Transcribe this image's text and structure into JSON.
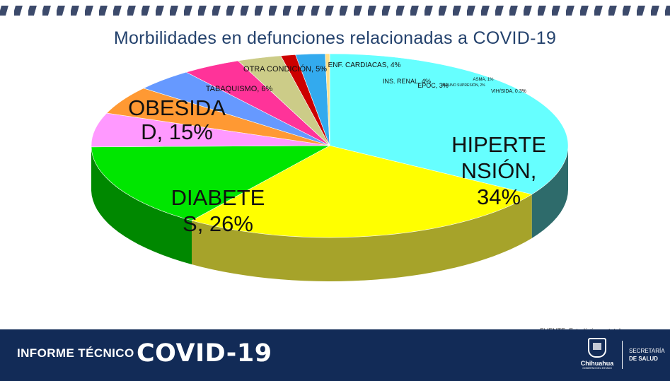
{
  "chart_data": {
    "type": "pie",
    "title": "Morbilidades en defunciones relacionadas a COVID-19",
    "slices": [
      {
        "label": "HIPERTENSIÓN",
        "value": 34,
        "display": [
          "HIPERTE",
          "NSIÓN,",
          "34%"
        ],
        "color": "#66ffff",
        "side": "#2e6b6b"
      },
      {
        "label": "DIABETES",
        "value": 26,
        "display": [
          "DIABETE",
          "S, 26%"
        ],
        "color": "#ffff00",
        "side": "#a6a32a"
      },
      {
        "label": "OBESIDAD",
        "value": 15,
        "display": [
          "OBESIDA",
          "D, 15%"
        ],
        "color": "#00e600",
        "side": "#008800"
      },
      {
        "label": "TABAQUISMO",
        "value": 6,
        "display": [
          "TABAQUISMO, 6%"
        ],
        "color": "#ff99ff",
        "side": "#a05aa0"
      },
      {
        "label": "OTRA CONDICIÓN",
        "value": 5,
        "display": [
          "OTRA CONDICIÓN, 5%"
        ],
        "color": "#ff9933",
        "side": "#a0561a"
      },
      {
        "label": "ENF. CARDIACAS",
        "value": 4,
        "display": [
          "ENF. CARDIACAS, 4%"
        ],
        "color": "#6699ff",
        "side": "#3a5aa0"
      },
      {
        "label": "INS. RENAL",
        "value": 4,
        "display": [
          "INS. RENAL, 4%"
        ],
        "color": "#ff3399",
        "side": "#a01a5a"
      },
      {
        "label": "EPOC",
        "value": 3,
        "display": [
          "EPOC, 3%"
        ],
        "color": "#cccc88",
        "side": "#8a8a55"
      },
      {
        "label": "ASMA",
        "value": 1,
        "display": [
          "ASMA, 1%"
        ],
        "color": "#cc0000",
        "side": "#7a0000"
      },
      {
        "label": "INMUNOSUPRESIÓN",
        "value": 2,
        "display": [
          "INMUNO SUPRESIÓN, 2%"
        ],
        "color": "#33aaee",
        "side": "#1a6a99"
      },
      {
        "label": "VIH/SIDA",
        "value": 0.3,
        "display": [
          "VIH/SIDA, 0.3%"
        ],
        "color": "#ffe08a",
        "side": "#a08a4a"
      }
    ],
    "legend": "none"
  },
  "source_note": "FUENTE: Estadística estatal",
  "footer": {
    "label": "INFORME TÉCNICO",
    "title": "COVID-19",
    "logo_name": "Chihuahua",
    "logo_sub": "GOBIERNO DEL ESTADO",
    "secretaria_line1": "SECRETARÍA",
    "secretaria_line2": "DE SALUD",
    "background": "#122b57"
  },
  "colors": {
    "title": "#24426d",
    "stripe": "#3c4a6b"
  }
}
